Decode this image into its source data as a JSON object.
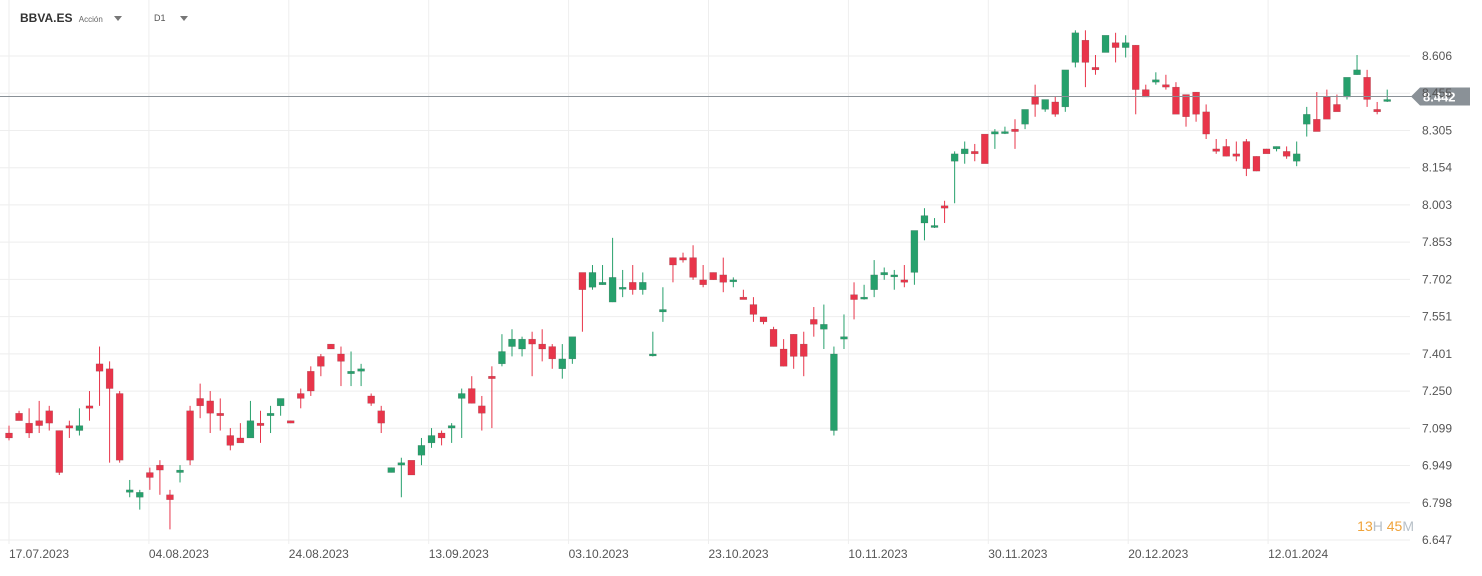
{
  "header": {
    "symbol": "BBVA.ES",
    "instrument_type": "Acción",
    "timeframe": "D1"
  },
  "countdown": {
    "hours": "13",
    "hours_unit": "H",
    "minutes": "45",
    "minutes_unit": "M"
  },
  "colors": {
    "up": "#26a06c",
    "down": "#e8354a",
    "grid": "#eeeeee",
    "axis_text": "#555555",
    "price_line": "#8a9197",
    "price_tag": "#8a9197"
  },
  "chart_data": {
    "type": "candlestick",
    "x_tick_labels": [
      "17.07.2023",
      "04.08.2023",
      "24.08.2023",
      "13.09.2023",
      "03.10.2023",
      "23.10.2023",
      "10.11.2023",
      "30.11.2023",
      "20.12.2023",
      "12.01.2024"
    ],
    "y_tick_labels": [
      "8.606",
      "8.455",
      "8.305",
      "8.154",
      "8.003",
      "7.853",
      "7.702",
      "7.551",
      "7.401",
      "7.250",
      "7.099",
      "6.949",
      "6.798",
      "6.647"
    ],
    "ylim": [
      6.647,
      8.606
    ],
    "current_price": "8.442",
    "grid": true,
    "candles": [
      [
        7.08,
        7.11,
        7.06,
        7.05
      ],
      [
        7.16,
        7.17,
        7.13,
        7.14
      ],
      [
        7.12,
        7.18,
        7.08,
        7.06
      ],
      [
        7.13,
        7.21,
        7.11,
        7.08
      ],
      [
        7.17,
        7.19,
        7.12,
        7.09
      ],
      [
        7.09,
        7.09,
        6.92,
        6.91
      ],
      [
        7.11,
        7.13,
        7.1,
        7.06
      ],
      [
        7.09,
        7.18,
        7.11,
        7.07
      ],
      [
        7.19,
        7.25,
        7.18,
        7.13
      ],
      [
        7.36,
        7.43,
        7.33,
        7.19
      ],
      [
        7.34,
        7.37,
        7.26,
        6.96
      ],
      [
        7.24,
        7.25,
        6.97,
        6.96
      ],
      [
        6.84,
        6.89,
        6.85,
        6.82
      ],
      [
        6.82,
        6.85,
        6.84,
        6.77
      ],
      [
        6.92,
        6.94,
        6.9,
        6.85
      ],
      [
        6.95,
        6.97,
        6.93,
        6.83
      ],
      [
        6.83,
        6.85,
        6.81,
        6.69
      ],
      [
        6.92,
        6.95,
        6.93,
        6.88
      ],
      [
        7.17,
        7.19,
        6.97,
        6.95
      ],
      [
        7.22,
        7.28,
        7.19,
        7.14
      ],
      [
        7.21,
        7.25,
        7.16,
        7.08
      ],
      [
        7.16,
        7.22,
        7.15,
        7.09
      ],
      [
        7.07,
        7.1,
        7.03,
        7.01
      ],
      [
        7.06,
        7.12,
        7.04,
        7.05
      ],
      [
        7.06,
        7.21,
        7.13,
        7.08
      ],
      [
        7.12,
        7.17,
        7.11,
        7.04
      ],
      [
        7.15,
        7.19,
        7.16,
        7.08
      ],
      [
        7.19,
        7.2,
        7.22,
        7.15
      ],
      [
        7.13,
        7.12,
        7.12,
        7.13
      ],
      [
        7.24,
        7.26,
        7.22,
        7.18
      ],
      [
        7.33,
        7.35,
        7.25,
        7.23
      ],
      [
        7.39,
        7.4,
        7.35,
        7.31
      ],
      [
        7.44,
        7.44,
        7.42,
        7.43
      ],
      [
        7.4,
        7.43,
        7.37,
        7.27
      ],
      [
        7.32,
        7.41,
        7.33,
        7.27
      ],
      [
        7.33,
        7.36,
        7.34,
        7.27
      ],
      [
        7.23,
        7.24,
        7.2,
        7.19
      ],
      [
        7.17,
        7.19,
        7.12,
        7.08
      ],
      [
        6.92,
        6.94,
        6.94,
        6.92
      ],
      [
        6.95,
        6.98,
        6.96,
        6.82
      ],
      [
        6.97,
        6.96,
        6.91,
        6.95
      ],
      [
        6.99,
        7.06,
        7.03,
        6.95
      ],
      [
        7.04,
        7.1,
        7.07,
        7.02
      ],
      [
        7.08,
        7.09,
        7.06,
        7.03
      ],
      [
        7.1,
        7.12,
        7.11,
        7.04
      ],
      [
        7.22,
        7.26,
        7.24,
        7.06
      ],
      [
        7.26,
        7.31,
        7.2,
        7.2
      ],
      [
        7.19,
        7.23,
        7.16,
        7.09
      ],
      [
        7.31,
        7.35,
        7.3,
        7.1
      ],
      [
        7.36,
        7.48,
        7.41,
        7.35
      ],
      [
        7.43,
        7.5,
        7.46,
        7.39
      ],
      [
        7.42,
        7.47,
        7.46,
        7.39
      ],
      [
        7.46,
        7.49,
        7.44,
        7.31
      ],
      [
        7.44,
        7.5,
        7.42,
        7.37
      ],
      [
        7.43,
        7.44,
        7.38,
        7.34
      ],
      [
        7.34,
        7.44,
        7.38,
        7.3
      ],
      [
        7.38,
        7.42,
        7.47,
        7.36
      ],
      [
        7.73,
        7.69,
        7.66,
        7.49
      ],
      [
        7.67,
        7.76,
        7.73,
        7.66
      ],
      [
        7.68,
        7.76,
        7.69,
        7.68
      ],
      [
        7.61,
        7.87,
        7.71,
        7.61
      ],
      [
        7.67,
        7.74,
        7.67,
        7.63
      ],
      [
        7.69,
        7.76,
        7.66,
        7.64
      ],
      [
        7.66,
        7.73,
        7.69,
        7.64
      ],
      [
        7.4,
        7.49,
        7.4,
        7.39
      ],
      [
        7.57,
        7.67,
        7.58,
        7.53
      ],
      [
        7.79,
        7.79,
        7.76,
        7.69
      ],
      [
        7.79,
        7.81,
        7.78,
        7.77
      ],
      [
        7.79,
        7.84,
        7.71,
        7.7
      ],
      [
        7.7,
        7.76,
        7.68,
        7.67
      ],
      [
        7.73,
        7.73,
        7.7,
        7.7
      ],
      [
        7.72,
        7.79,
        7.69,
        7.65
      ],
      [
        7.7,
        7.71,
        7.7,
        7.67
      ],
      [
        7.63,
        7.66,
        7.62,
        7.63
      ],
      [
        7.6,
        7.63,
        7.56,
        7.53
      ],
      [
        7.55,
        7.55,
        7.53,
        7.52
      ],
      [
        7.5,
        7.51,
        7.43,
        7.43
      ],
      [
        7.42,
        7.46,
        7.35,
        7.35
      ],
      [
        7.48,
        7.48,
        7.39,
        7.34
      ],
      [
        7.44,
        7.49,
        7.39,
        7.31
      ],
      [
        7.54,
        7.59,
        7.52,
        7.47
      ],
      [
        7.5,
        7.6,
        7.52,
        7.42
      ],
      [
        7.09,
        7.43,
        7.4,
        7.07
      ],
      [
        7.46,
        7.56,
        7.47,
        7.42
      ],
      [
        7.64,
        7.69,
        7.62,
        7.54
      ],
      [
        7.63,
        7.68,
        7.63,
        7.62
      ],
      [
        7.66,
        7.78,
        7.72,
        7.63
      ],
      [
        7.72,
        7.75,
        7.73,
        7.7
      ],
      [
        7.72,
        7.74,
        7.72,
        7.66
      ],
      [
        7.7,
        7.76,
        7.69,
        7.67
      ],
      [
        7.73,
        7.84,
        7.9,
        7.68
      ],
      [
        7.93,
        7.99,
        7.96,
        7.86
      ],
      [
        7.92,
        7.95,
        7.92,
        7.91
      ],
      [
        8.0,
        8.02,
        7.99,
        7.93
      ],
      [
        8.18,
        8.22,
        8.21,
        8.01
      ],
      [
        8.21,
        8.26,
        8.23,
        8.17
      ],
      [
        8.22,
        8.25,
        8.21,
        8.18
      ],
      [
        8.29,
        8.26,
        8.17,
        8.18
      ],
      [
        8.29,
        8.31,
        8.3,
        8.23
      ],
      [
        8.3,
        8.32,
        8.3,
        8.29
      ],
      [
        8.31,
        8.35,
        8.3,
        8.23
      ],
      [
        8.33,
        8.35,
        8.39,
        8.31
      ],
      [
        8.44,
        8.49,
        8.41,
        8.36
      ],
      [
        8.39,
        8.42,
        8.43,
        8.38
      ],
      [
        8.42,
        8.44,
        8.37,
        8.36
      ],
      [
        8.4,
        8.41,
        8.55,
        8.38
      ],
      [
        8.58,
        8.71,
        8.7,
        8.56
      ],
      [
        8.67,
        8.71,
        8.58,
        8.48
      ],
      [
        8.56,
        8.61,
        8.55,
        8.53
      ],
      [
        8.62,
        8.66,
        8.69,
        8.64
      ],
      [
        8.66,
        8.7,
        8.64,
        8.58
      ],
      [
        8.64,
        8.69,
        8.66,
        8.6
      ],
      [
        8.65,
        8.65,
        8.47,
        8.37
      ],
      [
        8.47,
        8.49,
        8.44,
        8.44
      ],
      [
        8.5,
        8.54,
        8.51,
        8.49
      ],
      [
        8.49,
        8.53,
        8.48,
        8.47
      ],
      [
        8.48,
        8.5,
        8.37,
        8.38
      ],
      [
        8.45,
        8.43,
        8.36,
        8.32
      ],
      [
        8.46,
        8.46,
        8.37,
        8.34
      ],
      [
        8.38,
        8.41,
        8.29,
        8.27
      ],
      [
        8.23,
        8.27,
        8.22,
        8.21
      ],
      [
        8.24,
        8.27,
        8.2,
        8.2
      ],
      [
        8.21,
        8.26,
        8.2,
        8.18
      ],
      [
        8.26,
        8.27,
        8.15,
        8.12
      ],
      [
        8.2,
        8.2,
        8.14,
        8.14
      ],
      [
        8.23,
        8.23,
        8.21,
        8.22
      ],
      [
        8.23,
        8.24,
        8.24,
        8.22
      ],
      [
        8.22,
        8.24,
        8.2,
        8.19
      ],
      [
        8.18,
        8.26,
        8.21,
        8.16
      ],
      [
        8.33,
        8.4,
        8.37,
        8.28
      ],
      [
        8.35,
        8.46,
        8.3,
        8.32
      ],
      [
        8.44,
        8.47,
        8.35,
        8.36
      ],
      [
        8.41,
        8.45,
        8.38,
        8.4
      ],
      [
        8.44,
        8.51,
        8.52,
        8.43
      ],
      [
        8.53,
        8.61,
        8.55,
        8.53
      ],
      [
        8.52,
        8.55,
        8.43,
        8.4
      ],
      [
        8.39,
        8.42,
        8.38,
        8.37
      ],
      [
        8.43,
        8.47,
        8.43,
        8.42
      ]
    ]
  }
}
